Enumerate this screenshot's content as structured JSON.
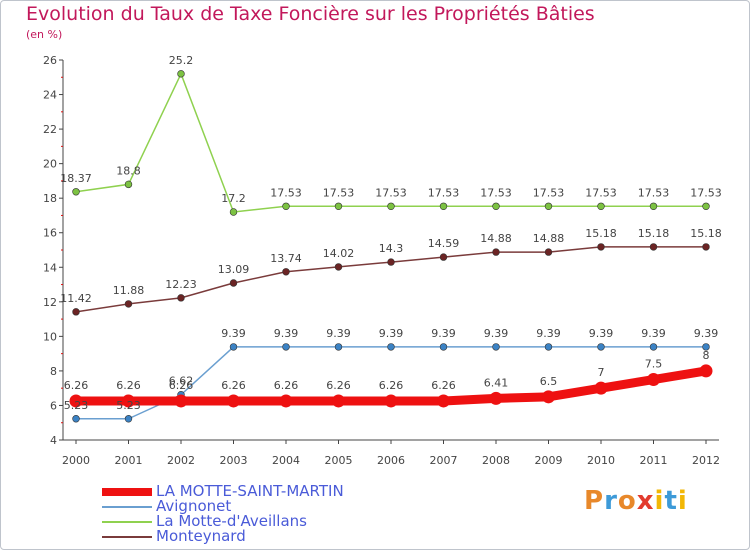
{
  "header": {
    "title": "Evolution du Taux de Taxe Foncière sur les Propriétés Bâties",
    "unit": "(en %)"
  },
  "brand": {
    "text": "Proxiti"
  },
  "chart_data": {
    "type": "line",
    "title": "Evolution du Taux de Taxe Foncière sur les Propriétés Bâties",
    "ylabel": "(en %)",
    "xlabel": "",
    "x": [
      "2000",
      "2001",
      "2002",
      "2003",
      "2004",
      "2005",
      "2006",
      "2007",
      "2008",
      "2009",
      "2010",
      "2011",
      "2012"
    ],
    "ylim": [
      4,
      26
    ],
    "yticks": [
      4,
      6,
      8,
      10,
      12,
      14,
      16,
      18,
      20,
      22,
      24,
      26
    ],
    "ytick_labels": [
      "4",
      "6",
      "8",
      "10",
      "12",
      "14",
      "16",
      "18",
      "20",
      "22",
      "24",
      "26"
    ],
    "grid": false,
    "legend_position": "bottom-left",
    "series": [
      {
        "name": "La Motte-d'Aveillans",
        "color": "#8fd14f",
        "point_color": "#7cc242",
        "line_style": "thin",
        "values": [
          18.37,
          18.8,
          25.2,
          17.2,
          17.53,
          17.53,
          17.53,
          17.53,
          17.53,
          17.53,
          17.53,
          17.53,
          17.53
        ],
        "labels": [
          "18.37",
          "18.8",
          "25.2",
          "17.2",
          "17.53",
          "17.53",
          "17.53",
          "17.53",
          "17.53",
          "17.53",
          "17.53",
          "17.53",
          "17.53"
        ]
      },
      {
        "name": "Monteynard",
        "color": "#7a3b3b",
        "point_color": "#6b2424",
        "line_style": "thin",
        "values": [
          11.42,
          11.88,
          12.23,
          13.09,
          13.74,
          14.02,
          14.3,
          14.59,
          14.88,
          14.88,
          15.18,
          15.18,
          15.18
        ],
        "labels": [
          "11.42",
          "11.88",
          "12.23",
          "13.09",
          "13.74",
          "14.02",
          "14.3",
          "14.59",
          "14.88",
          "14.88",
          "15.18",
          "15.18",
          "15.18"
        ]
      },
      {
        "name": "Avignonet",
        "color": "#6a9fd0",
        "point_color": "#3b82c4",
        "line_style": "thin",
        "values": [
          5.23,
          5.23,
          6.62,
          9.39,
          9.39,
          9.39,
          9.39,
          9.39,
          9.39,
          9.39,
          9.39,
          9.39,
          9.39
        ],
        "labels": [
          "5.23",
          "5.23",
          "6.62",
          "9.39",
          "9.39",
          "9.39",
          "9.39",
          "9.39",
          "9.39",
          "9.39",
          "9.39",
          "9.39",
          "9.39"
        ]
      },
      {
        "name": "LA MOTTE-SAINT-MARTIN",
        "color": "#ee1111",
        "point_color": "#ee1111",
        "line_style": "thick",
        "values": [
          6.26,
          6.26,
          6.26,
          6.26,
          6.26,
          6.26,
          6.26,
          6.26,
          6.41,
          6.5,
          7,
          7.5,
          8
        ],
        "labels": [
          "6.26",
          "6.26",
          "6.26",
          "6.26",
          "6.26",
          "6.26",
          "6.26",
          "6.26",
          "6.41",
          "6.5",
          "7",
          "7.5",
          "8"
        ]
      }
    ],
    "legend_order": [
      "LA MOTTE-SAINT-MARTIN",
      "Avignonet",
      "La Motte-d'Aveillans",
      "Monteynard"
    ]
  }
}
